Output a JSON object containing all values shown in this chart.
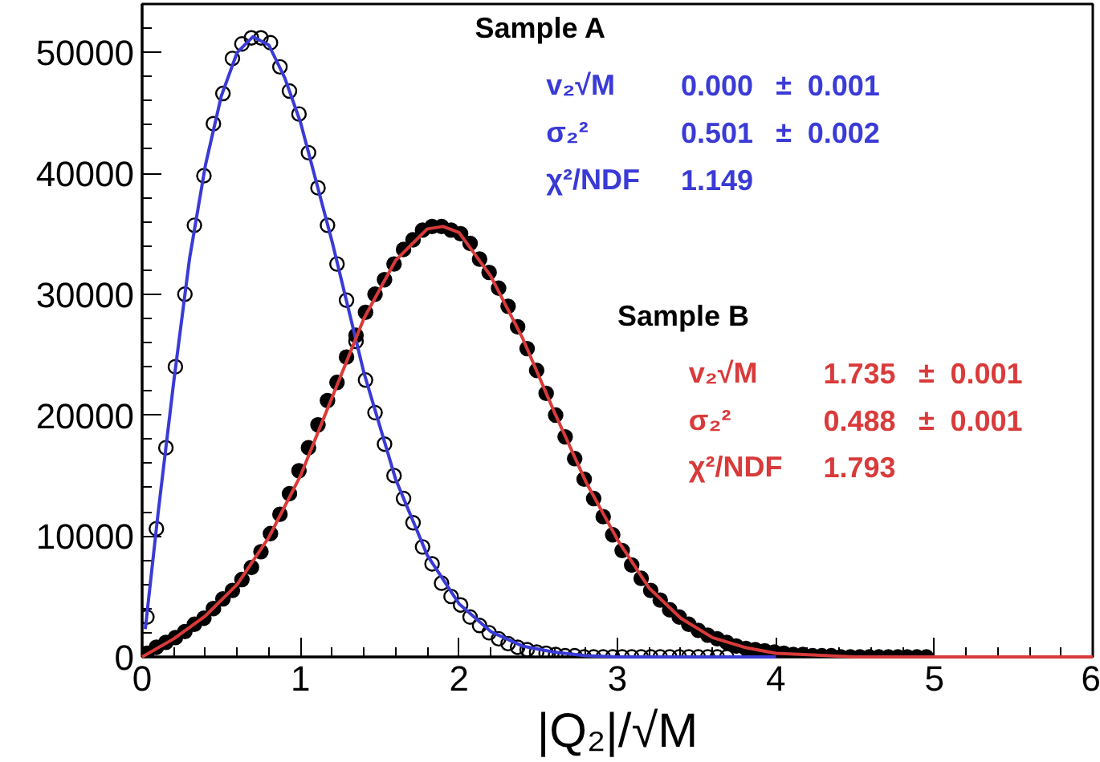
{
  "chart_data": {
    "type": "scatter",
    "xlabel": "|Q₂|/√M",
    "xlim": [
      0,
      6
    ],
    "ylim": [
      0,
      54000
    ],
    "xticks": [
      0,
      1,
      2,
      3,
      4,
      5,
      6
    ],
    "yticks": [
      0,
      10000,
      20000,
      30000,
      40000,
      50000
    ],
    "grid": false,
    "marker": "circle",
    "series": [
      {
        "color": "#000000",
        "x": [
          0.03,
          0.09,
          0.15,
          0.21,
          0.27,
          0.33,
          0.39,
          0.45,
          0.51,
          0.57,
          0.63,
          0.69,
          0.75,
          0.81,
          0.87,
          0.93,
          0.99,
          1.05,
          1.11,
          1.17,
          1.23,
          1.29,
          1.35,
          1.41,
          1.47,
          1.53,
          1.59,
          1.65,
          1.71,
          1.77,
          1.83,
          1.89,
          1.95,
          2.01,
          2.07,
          2.13,
          2.19,
          2.25,
          2.31,
          2.37,
          2.43,
          2.49,
          2.55,
          2.61,
          2.67,
          2.73,
          2.79,
          2.85,
          2.91,
          2.97,
          3.03,
          3.09,
          3.15,
          3.21,
          3.27,
          3.33,
          3.39,
          3.45,
          3.51,
          3.57,
          3.63,
          3.69
        ],
        "values": [
          3300,
          10600,
          17300,
          24000,
          30000,
          35700,
          39800,
          44100,
          46600,
          49500,
          50700,
          51200,
          51200,
          50800,
          48800,
          46800,
          44900,
          41700,
          38800,
          35700,
          32500,
          29500,
          26100,
          22900,
          20200,
          17600,
          15000,
          13100,
          11100,
          9100,
          7700,
          6100,
          5000,
          4300,
          3300,
          2600,
          2000,
          1500,
          1100,
          800,
          600,
          400,
          300,
          200,
          100,
          100,
          0,
          0,
          0,
          0,
          0,
          0,
          0,
          0,
          0,
          0,
          0,
          0,
          0,
          0,
          0,
          0
        ]
      },
      {
        "color": "#000000",
        "x": [
          0.03,
          0.09,
          0.15,
          0.21,
          0.27,
          0.33,
          0.39,
          0.45,
          0.51,
          0.57,
          0.63,
          0.69,
          0.75,
          0.81,
          0.87,
          0.93,
          0.99,
          1.05,
          1.11,
          1.17,
          1.23,
          1.29,
          1.35,
          1.41,
          1.47,
          1.53,
          1.59,
          1.65,
          1.71,
          1.77,
          1.83,
          1.89,
          1.95,
          2.01,
          2.07,
          2.13,
          2.19,
          2.25,
          2.31,
          2.37,
          2.43,
          2.49,
          2.55,
          2.61,
          2.67,
          2.73,
          2.79,
          2.85,
          2.91,
          2.97,
          3.03,
          3.09,
          3.15,
          3.21,
          3.27,
          3.33,
          3.39,
          3.45,
          3.51,
          3.57,
          3.63,
          3.69,
          3.75,
          3.81,
          3.87,
          3.93,
          3.99,
          4.05,
          4.11,
          4.17,
          4.23,
          4.29,
          4.35,
          4.41,
          4.47,
          4.53,
          4.59,
          4.65,
          4.71,
          4.77,
          4.83,
          4.89,
          4.95
        ],
        "values": [
          300,
          800,
          1200,
          1600,
          2100,
          2700,
          3200,
          4000,
          4800,
          5500,
          6400,
          7400,
          8700,
          10200,
          11800,
          13500,
          15400,
          17300,
          19200,
          21200,
          22700,
          24800,
          26600,
          28500,
          30000,
          31200,
          32500,
          33700,
          34500,
          35300,
          35600,
          35600,
          35300,
          35000,
          34200,
          32900,
          31800,
          30500,
          29000,
          27300,
          25500,
          23700,
          21800,
          20000,
          18200,
          16400,
          14700,
          13100,
          11600,
          10100,
          8800,
          7600,
          6500,
          5500,
          4700,
          3900,
          3300,
          2700,
          2200,
          1800,
          1500,
          1200,
          900,
          700,
          600,
          500,
          400,
          300,
          200,
          200,
          100,
          100,
          100,
          0,
          0,
          0,
          0,
          0,
          0,
          0,
          0,
          0,
          0
        ]
      },
      {
        "type": "line",
        "marker": "none",
        "color": "#3a3ad6",
        "x": [
          0.02,
          0.1,
          0.2,
          0.3,
          0.4,
          0.5,
          0.6,
          0.7,
          0.8,
          0.9,
          1.0,
          1.2,
          1.4,
          1.6,
          1.8,
          2.0,
          2.2,
          2.4,
          2.6,
          2.8,
          3.0,
          3.5,
          4.0
        ],
        "values": [
          2300,
          11800,
          22800,
          33000,
          40700,
          46400,
          50000,
          51300,
          50600,
          47900,
          44200,
          34300,
          23500,
          14700,
          8400,
          4400,
          2100,
          900,
          400,
          100,
          0,
          0,
          0
        ]
      },
      {
        "type": "line",
        "marker": "none",
        "color": "#d93a3a",
        "x": [
          0,
          0.2,
          0.4,
          0.6,
          0.8,
          1.0,
          1.2,
          1.4,
          1.6,
          1.8,
          1.9,
          2.0,
          2.2,
          2.4,
          2.6,
          2.8,
          3.0,
          3.2,
          3.4,
          3.6,
          3.8,
          4.0,
          4.5,
          5.0,
          6.0
        ],
        "values": [
          0,
          1500,
          3400,
          6000,
          9900,
          15000,
          21500,
          28000,
          32800,
          35400,
          35600,
          35100,
          31500,
          26400,
          20300,
          14500,
          9700,
          5700,
          3200,
          1600,
          800,
          300,
          0,
          0,
          0
        ]
      }
    ],
    "annotations": [
      "Sample A",
      "v₂√M  0.000  ±  0.001",
      "σ₂²  0.501  ±  0.002",
      "χ²/NDF  1.149",
      "Sample B",
      "v₂√M  1.735  ±  0.001",
      "σ₂²  0.488  ±  0.001",
      "χ²/NDF  1.793"
    ]
  }
}
